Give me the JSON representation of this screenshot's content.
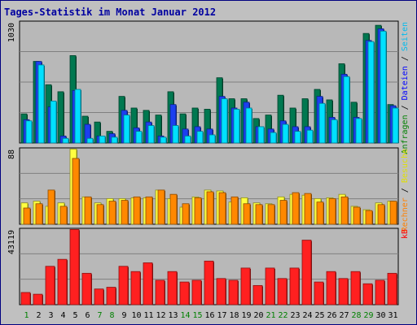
{
  "chart_data": {
    "type": "bar",
    "title": "Tages-Statistik im Monat Januar 2012",
    "categories": [
      "1",
      "2",
      "3",
      "4",
      "5",
      "6",
      "7",
      "8",
      "9",
      "10",
      "11",
      "12",
      "13",
      "14",
      "15",
      "16",
      "17",
      "18",
      "19",
      "20",
      "21",
      "22",
      "23",
      "24",
      "25",
      "26",
      "27",
      "28",
      "29",
      "30",
      "31"
    ],
    "weekend_days": [
      "1",
      "7",
      "8",
      "14",
      "15",
      "21",
      "22",
      "28",
      "29"
    ],
    "panels": [
      {
        "name": "anfragen-panel",
        "y_max_label": "1030",
        "ylim": [
          0,
          1030
        ],
        "right_labels": [
          {
            "text": "Anfragen",
            "color": "#008000"
          },
          {
            "text": " / ",
            "color": "#000000"
          },
          {
            "text": "Dateien",
            "color": "#0000ff"
          },
          {
            "text": " / ",
            "color": "#000000"
          },
          {
            "text": "Seiten",
            "color": "#00bbee"
          }
        ],
        "series": [
          {
            "name": "Anfragen",
            "color": "#007850",
            "values": [
              250,
              700,
              500,
              440,
              750,
              230,
              180,
              100,
              400,
              300,
              280,
              240,
              440,
              250,
              300,
              290,
              560,
              380,
              380,
              210,
              240,
              410,
              300,
              380,
              460,
              370,
              680,
              350,
              940,
              1010,
              330
            ]
          },
          {
            "name": "Dateien",
            "color": "#1c3ff0",
            "values": [
              200,
              700,
              310,
              60,
              450,
              160,
              60,
              80,
              280,
              130,
              180,
              60,
              330,
              120,
              140,
              120,
              400,
              300,
              350,
              140,
              120,
              190,
              140,
              140,
              400,
              220,
              590,
              220,
              880,
              980,
              320
            ]
          },
          {
            "name": "Seiten",
            "color": "#00e0ff",
            "values": [
              190,
              670,
              360,
              40,
              460,
              40,
              60,
              50,
              240,
              100,
              150,
              50,
              150,
              60,
              100,
              70,
              380,
              290,
              300,
              140,
              90,
              160,
              100,
              110,
              340,
              200,
              570,
              210,
              870,
              960,
              300
            ]
          }
        ]
      },
      {
        "name": "besuche-panel",
        "y_max_label": "88",
        "ylim": [
          0,
          88
        ],
        "right_labels": [
          {
            "text": "Rechner",
            "color": "#ff8000"
          },
          {
            "text": " / ",
            "color": "#000000"
          },
          {
            "text": "Besuche",
            "color": "#e0e000"
          }
        ],
        "series": [
          {
            "name": "Besuche",
            "color": "#ffff40",
            "values": [
              25,
              27,
              21,
              25,
              88,
              32,
              25,
              30,
              30,
              31,
              31,
              40,
              30,
              20,
              32,
              40,
              39,
              26,
              31,
              25,
              24,
              32,
              35,
              34,
              30,
              31,
              35,
              21,
              17,
              25,
              27
            ]
          },
          {
            "name": "Rechner",
            "color": "#ff8800",
            "values": [
              19,
              24,
              40,
              21,
              77,
              32,
              23,
              27,
              28,
              32,
              32,
              40,
              35,
              24,
              31,
              38,
              37,
              32,
              24,
              23,
              23,
              28,
              37,
              36,
              26,
              30,
              32,
              20,
              16,
              23,
              27
            ]
          }
        ]
      },
      {
        "name": "kb-panel",
        "y_max_label": "43119",
        "ylim": [
          0,
          43119
        ],
        "right_labels": [
          {
            "text": "kB",
            "color": "#ff0000"
          }
        ],
        "series": [
          {
            "name": "kB",
            "color": "#ff2020",
            "values": [
              7000,
              6000,
              22000,
              26000,
              43119,
              18000,
              9000,
              10000,
              22000,
              19000,
              24000,
              14000,
              19000,
              13000,
              14000,
              25000,
              15000,
              14000,
              21000,
              11000,
              21000,
              15000,
              21000,
              37000,
              13000,
              19000,
              15000,
              19000,
              12000,
              14000,
              18000
            ]
          }
        ]
      }
    ]
  }
}
